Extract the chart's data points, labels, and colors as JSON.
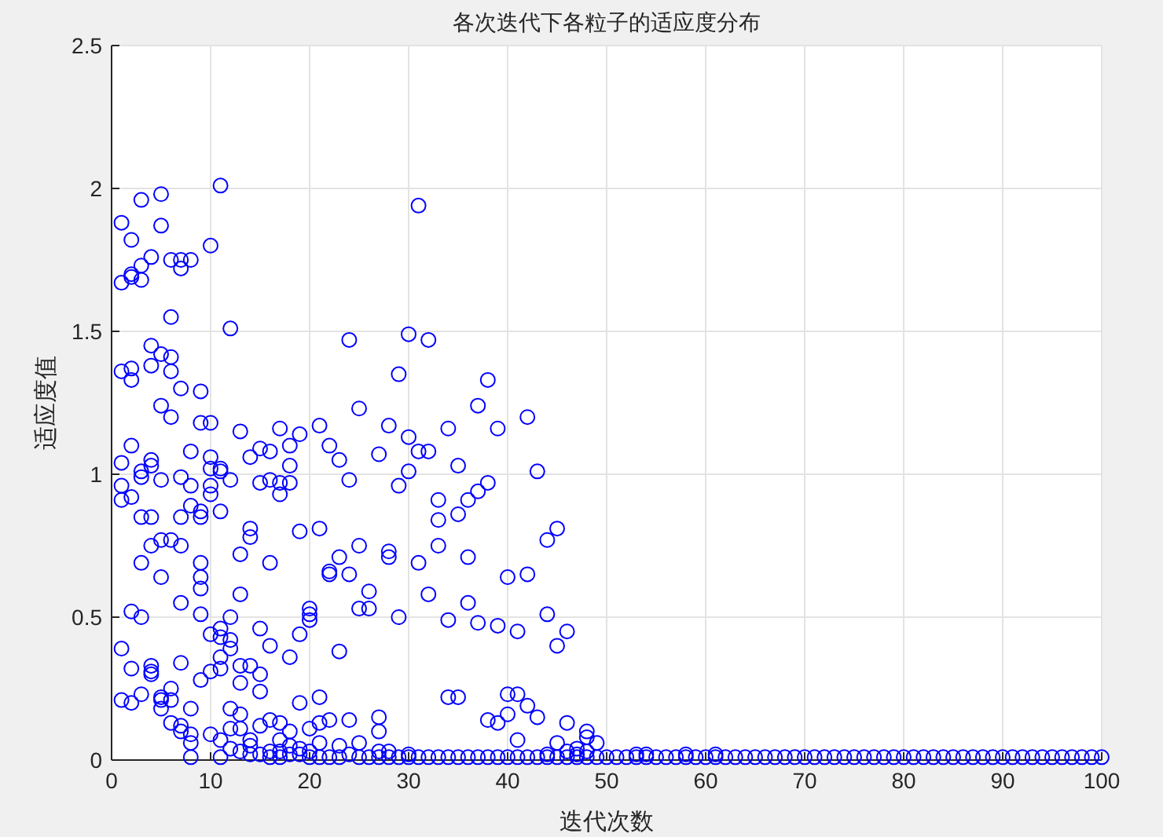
{
  "chart_data": {
    "type": "scatter",
    "title": "各次迭代下各粒子的适应度分布",
    "xlabel": "迭代次数",
    "ylabel": "适应度值",
    "xlim": [
      0,
      100
    ],
    "xticks": [
      0,
      10,
      20,
      30,
      40,
      50,
      60,
      70,
      80,
      90,
      100
    ],
    "ylim": [
      0,
      2.5
    ],
    "yticks": [
      0,
      0.5,
      1,
      1.5,
      2,
      2.5
    ],
    "grid": true,
    "marker": "circle",
    "series": [
      {
        "color": "#0000ff",
        "x": [
          1,
          1,
          1,
          1,
          1,
          1,
          1,
          1,
          2,
          2,
          2,
          2,
          2,
          2,
          2,
          2,
          2,
          2,
          3,
          3,
          3,
          3,
          3,
          3,
          3,
          3,
          3,
          4,
          4,
          4,
          4,
          4,
          4,
          4,
          4,
          4,
          4,
          5,
          5,
          5,
          5,
          5,
          5,
          5,
          5,
          5,
          5,
          6,
          6,
          6,
          6,
          6,
          6,
          6,
          6,
          6,
          7,
          7,
          7,
          7,
          7,
          7,
          7,
          7,
          7,
          7,
          8,
          8,
          8,
          8,
          8,
          8,
          8,
          8,
          9,
          9,
          9,
          9,
          9,
          9,
          9,
          9,
          9,
          10,
          10,
          10,
          10,
          10,
          10,
          10,
          10,
          10,
          11,
          11,
          11,
          11,
          11,
          11,
          11,
          11,
          11,
          11,
          12,
          12,
          12,
          12,
          12,
          12,
          12,
          12,
          13,
          13,
          13,
          13,
          13,
          13,
          13,
          13,
          14,
          14,
          14,
          14,
          14,
          14,
          14,
          15,
          15,
          15,
          15,
          15,
          15,
          15,
          16,
          16,
          16,
          16,
          16,
          16,
          16,
          17,
          17,
          17,
          17,
          17,
          17,
          17,
          18,
          18,
          18,
          18,
          18,
          18,
          18,
          19,
          19,
          19,
          19,
          19,
          19,
          20,
          20,
          20,
          20,
          20,
          20,
          21,
          21,
          21,
          21,
          21,
          21,
          22,
          22,
          22,
          22,
          22,
          23,
          23,
          23,
          23,
          23,
          24,
          24,
          24,
          24,
          24,
          25,
          25,
          25,
          25,
          25,
          26,
          26,
          26,
          27,
          27,
          27,
          27,
          27,
          28,
          28,
          28,
          28,
          28,
          29,
          29,
          29,
          29,
          30,
          30,
          30,
          30,
          30,
          31,
          31,
          31,
          31,
          32,
          32,
          32,
          32,
          33,
          33,
          33,
          33,
          34,
          34,
          34,
          34,
          35,
          35,
          35,
          35,
          36,
          36,
          36,
          36,
          37,
          37,
          37,
          37,
          38,
          38,
          38,
          38,
          39,
          39,
          39,
          39,
          40,
          40,
          40,
          40,
          41,
          41,
          41,
          41,
          42,
          42,
          42,
          42,
          43,
          43,
          43,
          44,
          44,
          44,
          44,
          45,
          45,
          45,
          45,
          46,
          46,
          46,
          46,
          47,
          47,
          47,
          48,
          48,
          48,
          48,
          49,
          49,
          50,
          51,
          52,
          53,
          53,
          54,
          54,
          55,
          56,
          57,
          58,
          58,
          59,
          60,
          61,
          61,
          62,
          63,
          64,
          65,
          66,
          67,
          68,
          69,
          70,
          71,
          72,
          73,
          74,
          75,
          76,
          77,
          78,
          79,
          80,
          81,
          82,
          83,
          84,
          85,
          86,
          87,
          88,
          89,
          90,
          91,
          92,
          93,
          94,
          95,
          96,
          97,
          98,
          99,
          100
        ],
        "values": [
          1.88,
          1.67,
          1.36,
          1.04,
          0.96,
          0.91,
          0.39,
          0.21,
          1.82,
          1.7,
          1.69,
          1.37,
          1.33,
          1.1,
          0.92,
          0.52,
          0.32,
          0.2,
          1.96,
          1.73,
          1.68,
          1.01,
          0.99,
          0.85,
          0.69,
          0.5,
          0.23,
          1.76,
          1.45,
          1.38,
          1.05,
          1.03,
          0.85,
          0.75,
          0.33,
          0.31,
          0.3,
          1.98,
          1.87,
          1.42,
          1.24,
          0.98,
          0.77,
          0.64,
          0.22,
          0.21,
          0.18,
          1.75,
          1.55,
          1.41,
          1.36,
          1.2,
          0.77,
          0.25,
          0.21,
          0.13,
          1.75,
          1.72,
          1.3,
          0.99,
          0.85,
          0.75,
          0.55,
          0.34,
          0.12,
          0.1,
          1.75,
          1.08,
          0.96,
          0.89,
          0.18,
          0.09,
          0.06,
          0.01,
          1.29,
          1.18,
          0.87,
          0.85,
          0.69,
          0.64,
          0.6,
          0.51,
          0.28,
          1.8,
          1.18,
          1.06,
          1.02,
          0.96,
          0.93,
          0.44,
          0.31,
          0.09,
          2.01,
          1.02,
          1.01,
          0.87,
          0.46,
          0.43,
          0.36,
          0.32,
          0.07,
          0.01,
          1.51,
          0.98,
          0.5,
          0.42,
          0.39,
          0.18,
          0.11,
          0.04,
          1.15,
          0.72,
          0.58,
          0.33,
          0.27,
          0.16,
          0.11,
          0.03,
          1.06,
          0.81,
          0.78,
          0.33,
          0.07,
          0.05,
          0.02,
          1.09,
          0.97,
          0.46,
          0.3,
          0.24,
          0.12,
          0.02,
          1.08,
          0.98,
          0.69,
          0.4,
          0.14,
          0.03,
          0.01,
          1.16,
          0.97,
          0.93,
          0.13,
          0.07,
          0.03,
          0.01,
          1.1,
          1.03,
          0.97,
          0.36,
          0.1,
          0.05,
          0.02,
          1.14,
          0.8,
          0.44,
          0.2,
          0.04,
          0.02,
          0.53,
          0.51,
          0.49,
          0.11,
          0.03,
          0.01,
          1.17,
          0.81,
          0.22,
          0.13,
          0.06,
          0.01,
          1.1,
          0.66,
          0.65,
          0.14,
          0.01,
          1.05,
          0.71,
          0.38,
          0.05,
          0.01,
          1.47,
          0.98,
          0.65,
          0.14,
          0.02,
          1.23,
          0.75,
          0.53,
          0.06,
          0.01,
          0.59,
          0.53,
          0.01,
          1.07,
          0.15,
          0.1,
          0.03,
          0.01,
          1.17,
          0.73,
          0.71,
          0.03,
          0.01,
          1.35,
          0.96,
          0.5,
          0.01,
          1.49,
          1.13,
          1.01,
          0.02,
          0.01,
          1.94,
          1.08,
          0.69,
          0.01,
          1.47,
          1.08,
          0.58,
          0.01,
          0.91,
          0.84,
          0.75,
          0.01,
          1.16,
          0.49,
          0.22,
          0.01,
          1.03,
          0.86,
          0.22,
          0.01,
          0.91,
          0.71,
          0.55,
          0.01,
          1.24,
          0.94,
          0.48,
          0.01,
          1.33,
          0.97,
          0.14,
          0.01,
          1.16,
          0.47,
          0.13,
          0.01,
          0.64,
          0.23,
          0.16,
          0.01,
          0.45,
          0.23,
          0.07,
          0.01,
          1.2,
          0.65,
          0.19,
          0.01,
          1.01,
          0.15,
          0.01,
          0.77,
          0.51,
          0.02,
          0.01,
          0.81,
          0.4,
          0.06,
          0.01,
          0.45,
          0.13,
          0.03,
          0.01,
          0.04,
          0.02,
          0.01,
          0.1,
          0.08,
          0.03,
          0.01,
          0.06,
          0.01,
          0.01,
          0.01,
          0.01,
          0.01,
          0.02,
          0.01,
          0.02,
          0.01,
          0.01,
          0.01,
          0.01,
          0.02,
          0.01,
          0.01,
          0.01,
          0.02,
          0.01,
          0.01,
          0.01,
          0.01,
          0.01,
          0.01,
          0.01,
          0.01,
          0.01,
          0.01,
          0.01,
          0.01,
          0.01,
          0.01,
          0.01,
          0.01,
          0.01,
          0.01,
          0.01,
          0.01,
          0.01,
          0.01,
          0.01,
          0.01,
          0.01,
          0.01,
          0.01,
          0.01,
          0.01,
          0.01,
          0.01,
          0.01,
          0.01,
          0.01,
          0.01,
          0.01,
          0.01,
          0.01,
          0.01
        ]
      }
    ]
  }
}
